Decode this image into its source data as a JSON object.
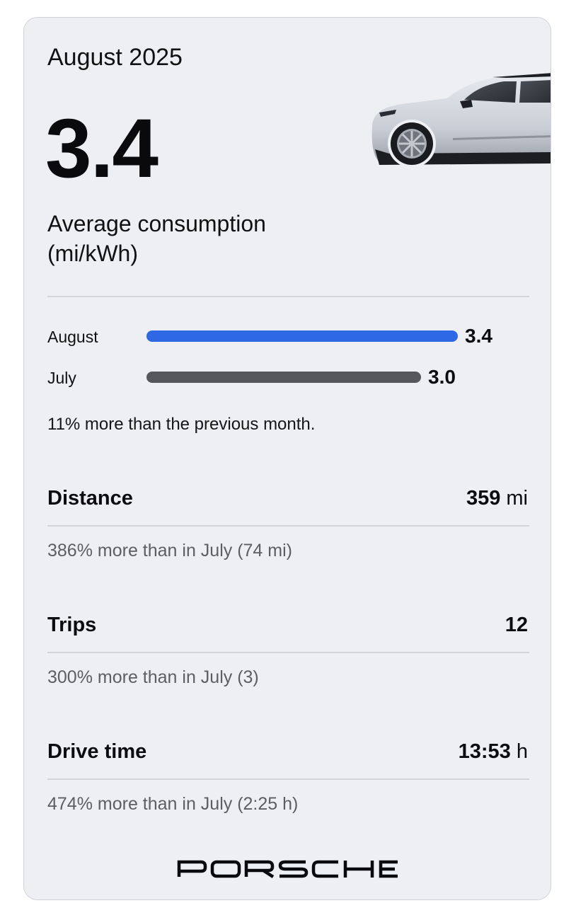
{
  "header": {
    "month": "August 2025",
    "average_value": "3.4",
    "average_label": "Average consumption (mi/kWh)"
  },
  "comparison": {
    "bars": [
      {
        "label": "August",
        "value": "3.4",
        "numeric": 3.4,
        "color": "#2f68e5"
      },
      {
        "label": "July",
        "value": "3.0",
        "numeric": 3.0,
        "color": "#56575d"
      }
    ],
    "note": "11% more than the previous month."
  },
  "stats": {
    "distance": {
      "title": "Distance",
      "value": "359",
      "unit": "mi",
      "sub": "386% more than in July (74 mi)"
    },
    "trips": {
      "title": "Trips",
      "value": "12",
      "unit": "",
      "sub": "300% more than in July (3)"
    },
    "drive_time": {
      "title": "Drive time",
      "value": "13:53",
      "unit": "h",
      "sub": "474% more than in July (2:25 h)"
    }
  },
  "brand": {
    "logo_text": "PORSCHE",
    "car_icon": "car-image"
  }
}
